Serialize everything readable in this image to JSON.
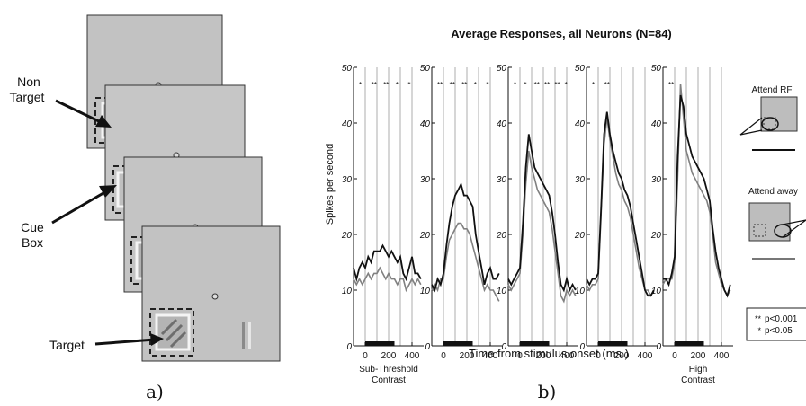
{
  "panel_a": {
    "label_non_target": [
      "Non",
      "Target"
    ],
    "label_cue": [
      "Cue",
      "Box"
    ],
    "label_target": "Target",
    "caption": "a)"
  },
  "panel_b": {
    "caption": "b)"
  },
  "legend": {
    "attend_rf": "Attend RF",
    "attend_away": "Attend away",
    "sig_items": [
      {
        "marker": "**",
        "label": "p<0.001"
      },
      {
        "marker": "*",
        "label": "p<0.05"
      }
    ]
  },
  "chart_data": {
    "type": "line",
    "title": "Average Responses, all Neurons (N=84)",
    "xlabel": "Time from stimulus onset (ms.)",
    "ylabel": "Spikes per second",
    "ylim": [
      0,
      50
    ],
    "xlim": [
      -100,
      500
    ],
    "xticks": [
      0,
      200,
      400
    ],
    "yticks": [
      0,
      10,
      20,
      30,
      40,
      50
    ],
    "stimulus_bar_ms": [
      0,
      250
    ],
    "series_names": [
      "Attend RF",
      "Attend away"
    ],
    "x": [
      -100,
      -75,
      -50,
      -25,
      0,
      25,
      50,
      75,
      100,
      125,
      150,
      175,
      200,
      225,
      250,
      275,
      300,
      325,
      350,
      375,
      400,
      425,
      450,
      475
    ],
    "panels": [
      {
        "label": "Sub-Threshold Contrast",
        "significance": [
          "*",
          "**",
          "**",
          "*",
          "*"
        ],
        "attend_rf": [
          14,
          12,
          14,
          15,
          14,
          16,
          15,
          17,
          17,
          17,
          18,
          17,
          16,
          17,
          16,
          15,
          16,
          13,
          12,
          14,
          16,
          13,
          13,
          12
        ],
        "attend_away": [
          12,
          11,
          12,
          11,
          12,
          13,
          12,
          13,
          13,
          14,
          13,
          12,
          13,
          12,
          12,
          11,
          12,
          12,
          10,
          11,
          12,
          11,
          12,
          11
        ]
      },
      {
        "label": "",
        "significance": [
          "**",
          "**",
          "**",
          "*",
          "*"
        ],
        "attend_rf": [
          11,
          10,
          12,
          11,
          13,
          18,
          22,
          25,
          27,
          28,
          29,
          27,
          27,
          26,
          25,
          20,
          17,
          14,
          11,
          13,
          14,
          12,
          12,
          13
        ],
        "attend_away": [
          10,
          11,
          10,
          12,
          12,
          16,
          19,
          20,
          21,
          22,
          22,
          21,
          21,
          20,
          18,
          16,
          14,
          12,
          10,
          11,
          10,
          10,
          9,
          8
        ]
      },
      {
        "label": "",
        "significance": [
          "*",
          "*",
          "**",
          "**",
          "**",
          "*"
        ],
        "attend_rf": [
          12,
          11,
          12,
          13,
          14,
          22,
          32,
          38,
          35,
          32,
          31,
          30,
          29,
          28,
          27,
          24,
          20,
          15,
          11,
          10,
          12,
          10,
          11,
          10
        ],
        "attend_away": [
          11,
          10,
          11,
          12,
          13,
          20,
          29,
          35,
          32,
          30,
          28,
          27,
          26,
          25,
          24,
          21,
          17,
          13,
          9,
          8,
          10,
          9,
          10,
          9
        ]
      },
      {
        "label": "",
        "significance": [
          "*",
          "**"
        ],
        "attend_rf": [
          12,
          11,
          12,
          12,
          13,
          25,
          38,
          42,
          38,
          35,
          33,
          31,
          30,
          28,
          27,
          25,
          22,
          19,
          16,
          13,
          10,
          9,
          9,
          10
        ],
        "attend_away": [
          11,
          10,
          11,
          11,
          12,
          24,
          36,
          41,
          37,
          34,
          31,
          29,
          28,
          26,
          25,
          23,
          20,
          17,
          14,
          12,
          10,
          10,
          9,
          10
        ]
      },
      {
        "label": "High Contrast",
        "significance": [
          "**"
        ],
        "attend_rf": [
          12,
          12,
          11,
          13,
          16,
          34,
          45,
          43,
          38,
          36,
          34,
          33,
          32,
          31,
          30,
          28,
          26,
          21,
          17,
          14,
          12,
          10,
          9,
          11
        ],
        "attend_away": [
          11,
          12,
          12,
          12,
          15,
          30,
          47,
          41,
          35,
          33,
          31,
          30,
          29,
          28,
          27,
          26,
          24,
          20,
          15,
          13,
          11,
          10,
          9,
          10
        ]
      }
    ]
  }
}
